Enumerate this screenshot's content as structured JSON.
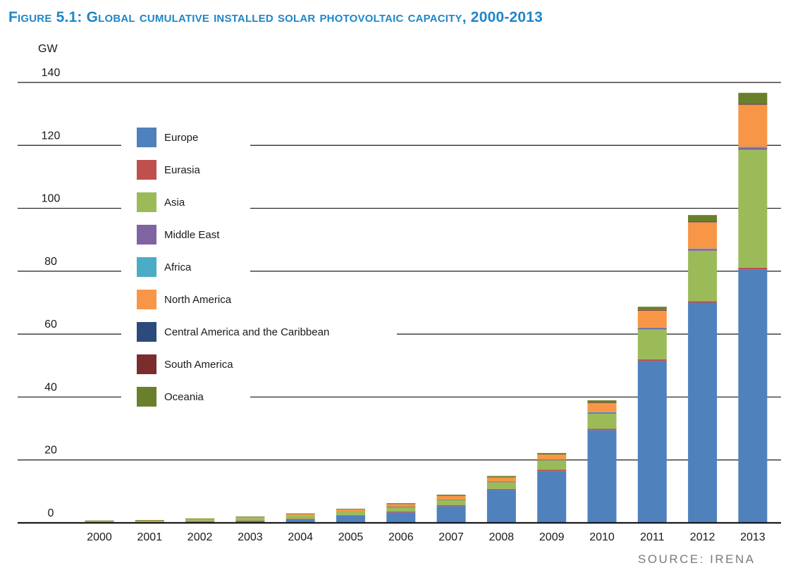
{
  "figure": {
    "title": "Figure 5.1: Global cumulative installed solar photovoltaic capacity, 2000-2013",
    "source": "SOURCE: IRENA"
  },
  "chart_data": {
    "type": "bar",
    "stacked": true,
    "title": "Figure 5.1: Global cumulative installed solar photovoltaic capacity, 2000-2013",
    "ylabel": "GW",
    "xlabel": "",
    "ylim": [
      0,
      140
    ],
    "yticks": [
      0,
      20,
      40,
      60,
      80,
      100,
      120,
      140
    ],
    "grid": true,
    "legend_position": "top-left",
    "categories": [
      "2000",
      "2001",
      "2002",
      "2003",
      "2004",
      "2005",
      "2006",
      "2007",
      "2008",
      "2009",
      "2010",
      "2011",
      "2012",
      "2013"
    ],
    "series": [
      {
        "name": "Europe",
        "color": "#4f81bd",
        "values": [
          0.1,
          0.2,
          0.4,
          0.6,
          1.2,
          2.3,
          3.3,
          5.3,
          10.5,
          16.5,
          29.5,
          51.5,
          70,
          80.5
        ]
      },
      {
        "name": "Eurasia",
        "color": "#c0504d",
        "values": [
          0.05,
          0.05,
          0.1,
          0.1,
          0.1,
          0.2,
          0.3,
          0.3,
          0.3,
          0.4,
          0.4,
          0.5,
          0.5,
          0.6
        ]
      },
      {
        "name": "Asia",
        "color": "#9bbb59",
        "values": [
          0.4,
          0.4,
          0.6,
          0.8,
          1.0,
          1.2,
          1.5,
          1.8,
          2.2,
          3.0,
          4.8,
          9.5,
          16,
          37.5
        ]
      },
      {
        "name": "Middle East",
        "color": "#8064a2",
        "values": [
          0,
          0,
          0,
          0,
          0,
          0,
          0.05,
          0.05,
          0.1,
          0.2,
          0.4,
          0.5,
          0.6,
          0.7
        ]
      },
      {
        "name": "Africa",
        "color": "#4bacc6",
        "values": [
          0,
          0,
          0,
          0,
          0,
          0,
          0,
          0,
          0,
          0,
          0.1,
          0.1,
          0.1,
          0.2
        ]
      },
      {
        "name": "North America",
        "color": "#f79646",
        "values": [
          0.1,
          0.15,
          0.2,
          0.3,
          0.5,
          0.6,
          0.8,
          1.1,
          1.3,
          1.6,
          3.0,
          5.5,
          8.5,
          13.5
        ]
      },
      {
        "name": "Central America and the Caribbean",
        "color": "#2c4a7c",
        "values": [
          0,
          0,
          0,
          0,
          0,
          0,
          0,
          0,
          0,
          0,
          0,
          0.05,
          0.05,
          0.1
        ]
      },
      {
        "name": "South America",
        "color": "#7b2c2c",
        "values": [
          0,
          0,
          0,
          0,
          0,
          0,
          0,
          0,
          0,
          0,
          0.05,
          0.05,
          0.1,
          0.1
        ]
      },
      {
        "name": "Oceania",
        "color": "#6a7f2a",
        "values": [
          0.1,
          0.1,
          0.1,
          0.2,
          0.2,
          0.2,
          0.3,
          0.4,
          0.5,
          0.5,
          0.7,
          1.0,
          2.0,
          3.5
        ]
      }
    ]
  }
}
